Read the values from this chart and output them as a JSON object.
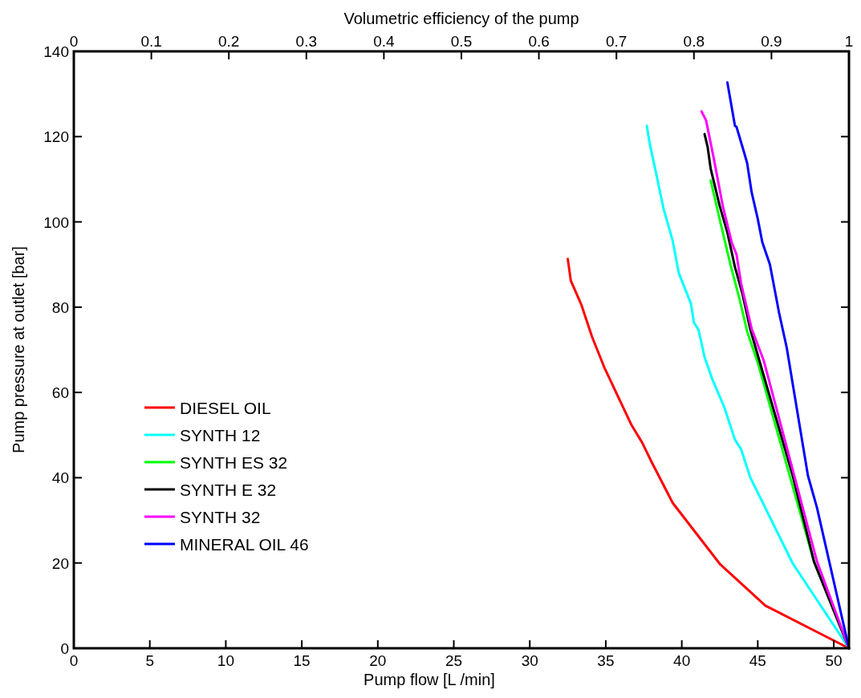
{
  "chart_data": {
    "type": "line",
    "xlabel": "Pump flow [L /min]",
    "ylabel": "Pump pressure at outlet [bar]",
    "x2label": "Volumetric efficiency of the pump",
    "xlim": [
      0,
      51
    ],
    "xticks": [
      0,
      5,
      10,
      15,
      20,
      25,
      30,
      35,
      40,
      45,
      50
    ],
    "ylim": [
      0,
      140
    ],
    "yticks": [
      0,
      20,
      40,
      60,
      80,
      100,
      120,
      140
    ],
    "x2lim": [
      0,
      1
    ],
    "x2ticks": [
      0,
      0.1,
      0.2,
      0.3,
      0.4,
      0.5,
      0.6,
      0.7,
      0.8,
      0.9,
      1
    ],
    "legend": "bottom left",
    "grid": false,
    "line_style": "solid",
    "marker": "none",
    "series": [
      {
        "name": "DIESEL OIL",
        "color": "#ff0000",
        "x": [
          32.5,
          32.7,
          33.4,
          34.1,
          34.9,
          35.4,
          36.7,
          37.4,
          38,
          39.4,
          42.5,
          45.5,
          51
        ],
        "values": [
          91.3,
          86.2,
          80.5,
          73,
          65.9,
          62.1,
          52.3,
          48.2,
          43.8,
          34.1,
          19.8,
          10,
          0
        ]
      },
      {
        "name": "SYNTH 12",
        "color": "#00ffff",
        "x": [
          37.7,
          37.9,
          38.3,
          38.8,
          39.4,
          39.8,
          40.6,
          40.8,
          41.1,
          41.5,
          42,
          42.8,
          43.5,
          43.9,
          44.5,
          47.3,
          51
        ],
        "values": [
          122.5,
          118.2,
          111.6,
          103.1,
          95.6,
          88,
          80.9,
          76.4,
          74.7,
          68.3,
          63.2,
          56.5,
          48.9,
          46.7,
          40.1,
          19.9,
          0
        ]
      },
      {
        "name": "SYNTH ES 32",
        "color": "#00ff00",
        "x": [
          41.9,
          42.7,
          43.2,
          43.8,
          44.3,
          45,
          48.7,
          51
        ],
        "values": [
          109.7,
          97.5,
          90,
          81.9,
          74.3,
          67,
          20.3,
          0
        ]
      },
      {
        "name": "SYNTH E 32",
        "color": "#000000",
        "x": [
          41.5,
          41.7,
          41.9,
          42.5,
          43,
          43.5,
          44,
          44.5,
          47.3,
          48.7,
          51
        ],
        "values": [
          120.6,
          117.6,
          112.5,
          103.7,
          97.5,
          89.4,
          83,
          74.9,
          40.5,
          20.3,
          0
        ]
      },
      {
        "name": "SYNTH 32",
        "color": "#ff00ff",
        "x": [
          41.3,
          41.6,
          42.1,
          42.7,
          43.3,
          43.6,
          43.9,
          44.6,
          45.4,
          48.9,
          51
        ],
        "values": [
          125.9,
          123.8,
          115,
          103.7,
          95,
          92.4,
          85.6,
          74.9,
          67.4,
          20.3,
          0
        ]
      },
      {
        "name": "MINERAL OIL 46",
        "color": "#0000ff",
        "x": [
          43,
          43.5,
          43.6,
          44.1,
          44.3,
          44.6,
          45,
          45.3,
          45.8,
          46.4,
          46.9,
          48.3,
          48.9,
          51
        ],
        "values": [
          132.7,
          122.5,
          122.3,
          116.3,
          113.8,
          106.9,
          100.7,
          95.2,
          90,
          78.7,
          70.6,
          40.5,
          32.9,
          0
        ]
      }
    ]
  }
}
